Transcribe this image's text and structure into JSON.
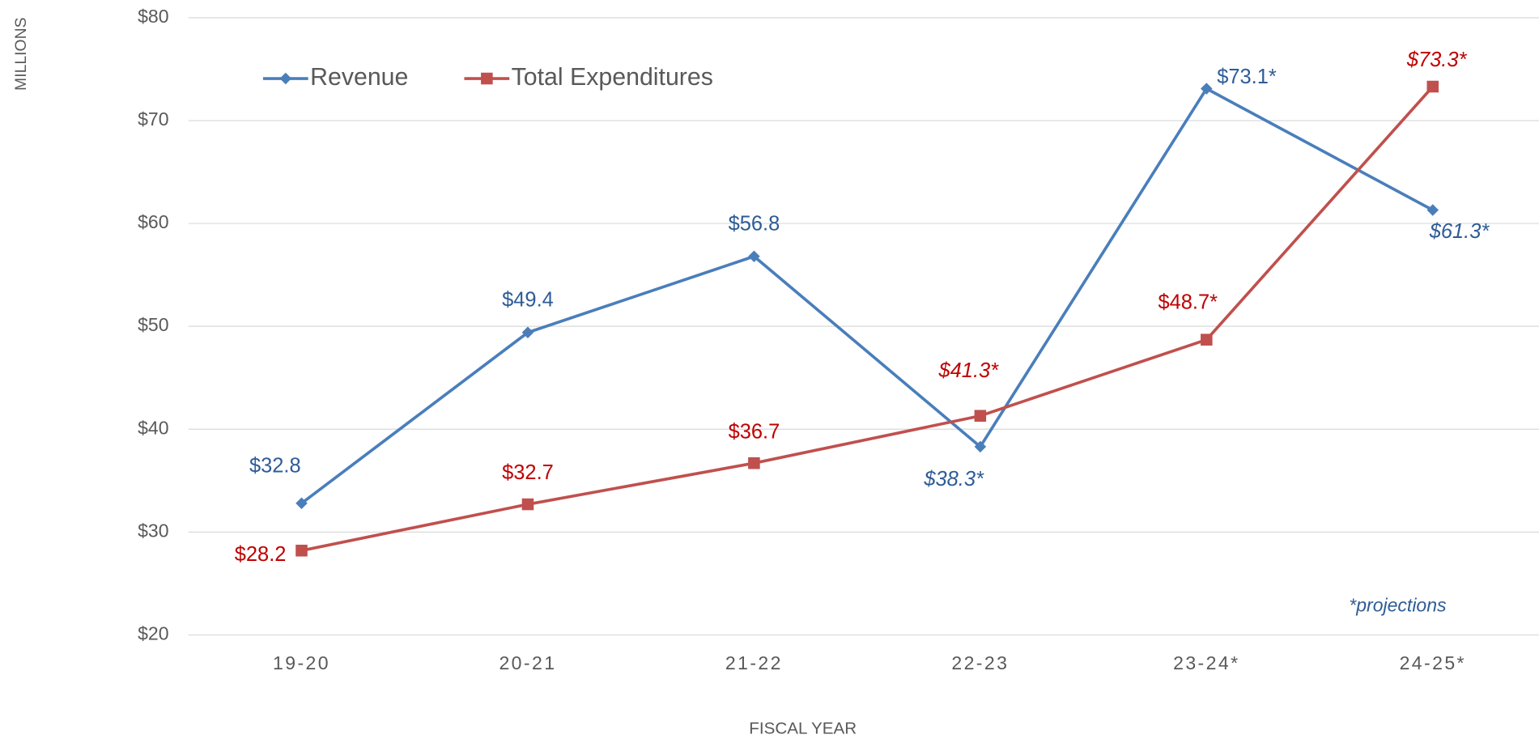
{
  "chart_data": {
    "type": "line",
    "categories": [
      "19-20",
      "20-21",
      "21-22",
      "22-23",
      "23-24*",
      "24-25*"
    ],
    "series": [
      {
        "name": "Revenue",
        "color": "#4a7ebb",
        "marker": "diamond",
        "values": [
          32.8,
          49.4,
          56.8,
          38.3,
          73.1,
          61.3
        ],
        "value_labels": [
          "$32.8",
          "$49.4",
          "$56.8",
          "$38.3*",
          "$73.1*",
          "$61.3*"
        ]
      },
      {
        "name": "Total Expenditures",
        "color": "#c0504d",
        "marker": "square",
        "values": [
          28.2,
          32.7,
          36.7,
          41.3,
          48.7,
          73.3
        ],
        "value_labels": [
          "$28.2",
          "$32.7",
          "$36.7",
          "$41.3*",
          "$48.7*",
          "$73.3*"
        ]
      }
    ],
    "ylabel": "MILLIONS",
    "xlabel": "FISCAL YEAR",
    "annotation": "*projections",
    "ylim": [
      20,
      80
    ],
    "yticks": [
      {
        "value": 20,
        "label": "$20"
      },
      {
        "value": 30,
        "label": "$30"
      },
      {
        "value": 40,
        "label": "$40"
      },
      {
        "value": 50,
        "label": "$50"
      },
      {
        "value": 60,
        "label": "$60"
      },
      {
        "value": 70,
        "label": "$70"
      },
      {
        "value": 80,
        "label": "$80"
      }
    ],
    "grid": true,
    "legend": "top-left"
  }
}
